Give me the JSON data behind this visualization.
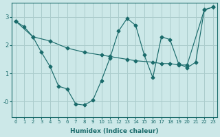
{
  "xlabel": "Humidex (Indice chaleur)",
  "bg_color": "#cce8e8",
  "line_color": "#1a6b6b",
  "grid_color": "#aacccc",
  "xlim": [
    -0.5,
    23.5
  ],
  "ylim": [
    -0.55,
    3.5
  ],
  "yticks": [
    0,
    1,
    2,
    3
  ],
  "ytick_labels": [
    "-0",
    "1",
    "2",
    "3"
  ],
  "xticks": [
    0,
    1,
    2,
    3,
    4,
    5,
    6,
    7,
    8,
    9,
    10,
    11,
    12,
    13,
    14,
    15,
    16,
    17,
    18,
    19,
    20,
    21,
    22,
    23
  ],
  "line1_x": [
    0,
    1,
    2,
    3,
    4,
    5,
    6,
    7,
    8,
    9,
    10,
    11,
    12,
    13,
    14,
    15,
    16,
    17,
    18,
    19,
    20,
    21,
    22,
    23
  ],
  "line1_y": [
    2.85,
    2.65,
    2.3,
    1.75,
    1.25,
    0.55,
    0.45,
    -0.08,
    -0.12,
    0.05,
    0.75,
    1.55,
    2.5,
    2.95,
    2.7,
    1.65,
    0.85,
    2.3,
    2.2,
    1.35,
    1.2,
    1.4,
    3.25,
    3.35
  ],
  "line2_x": [
    0,
    2,
    4,
    6,
    8,
    10,
    11,
    13,
    14,
    16,
    17,
    18,
    19,
    20,
    22,
    23
  ],
  "line2_y": [
    2.85,
    2.3,
    2.15,
    1.9,
    1.75,
    1.65,
    1.6,
    1.5,
    1.45,
    1.4,
    1.35,
    1.35,
    1.3,
    1.3,
    3.25,
    3.35
  ]
}
